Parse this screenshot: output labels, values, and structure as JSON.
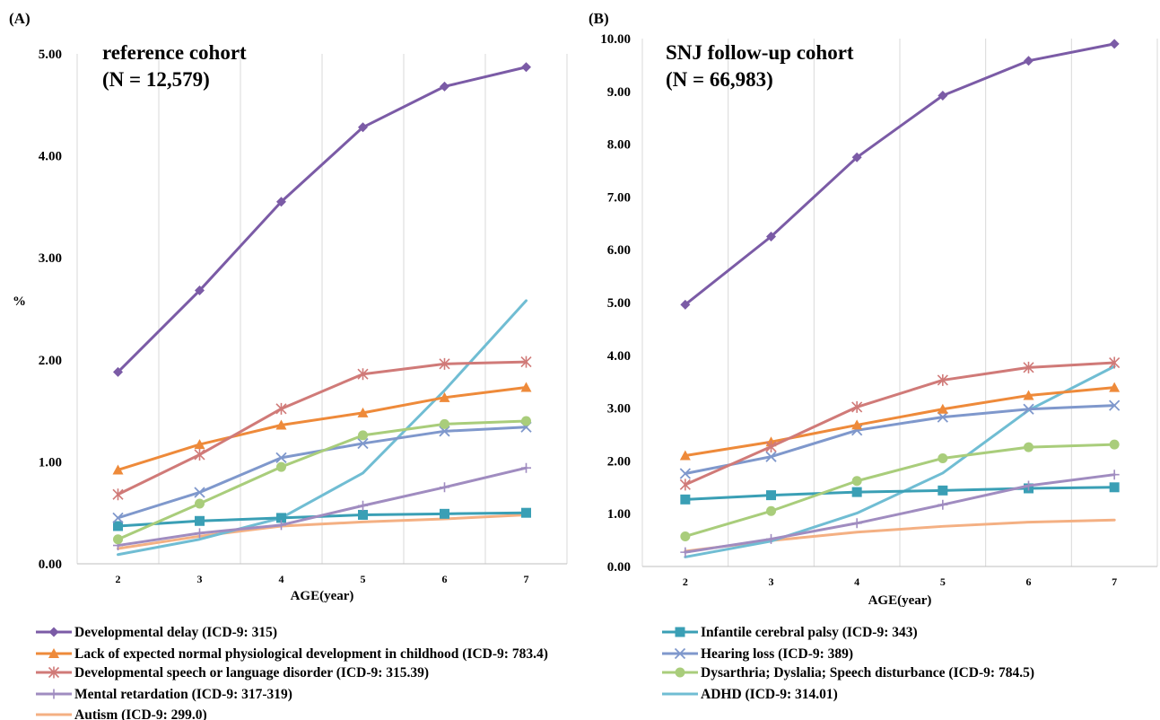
{
  "colors": {
    "Developmental delay (ICD-9: 315)": "#7b5ba6",
    "Infantile cerebral palsy (ICD-9: 343)": "#3a9fb5",
    "Lack of expected normal physiological development in childhood (ICD-9: 783.4)": "#ee8a3a",
    "Hearing loss (ICD-9: 389)": "#7f98cc",
    "Developmental speech or language disorder (ICD-9: 315.39)": "#d07a78",
    "Dysarthria; Dyslalia; Speech disturbance (ICD-9: 784.5)": "#a9cd7b",
    "Mental retardation (ICD-9: 317-319)": "#a08cc0",
    "ADHD (ICD-9: 314.01)": "#70bdd3",
    "Autism (ICD-9: 299.0)": "#f4b083"
  },
  "markers": {
    "Developmental delay (ICD-9: 315)": "diamond",
    "Infantile cerebral palsy (ICD-9: 343)": "square",
    "Lack of expected normal physiological development in childhood (ICD-9: 783.4)": "triangle",
    "Hearing loss (ICD-9: 389)": "x",
    "Developmental speech or language disorder (ICD-9: 315.39)": "star",
    "Dysarthria; Dyslalia; Speech disturbance (ICD-9: 784.5)": "circle",
    "Mental retardation (ICD-9: 317-319)": "plus",
    "ADHD (ICD-9: 314.01)": "none",
    "Autism (ICD-9: 299.0)": "none"
  },
  "legend": [
    "Developmental delay (ICD-9: 315)",
    "Infantile cerebral palsy (ICD-9: 343)",
    "Lack of expected normal physiological development in childhood (ICD-9: 783.4)",
    "Hearing loss (ICD-9: 389)",
    "Developmental speech or language disorder (ICD-9: 315.39)",
    "Dysarthria; Dyslalia; Speech disturbance (ICD-9: 784.5)",
    "Mental retardation (ICD-9: 317-319)",
    "ADHD (ICD-9: 314.01)",
    "Autism (ICD-9: 299.0)"
  ],
  "chart_data": [
    {
      "panel": "(A)",
      "type": "line",
      "title": [
        "reference cohort",
        "(N = 12,579)"
      ],
      "xlabel": "AGE(year)",
      "ylabel": "%",
      "x": [
        2,
        3,
        4,
        5,
        6,
        7
      ],
      "ylim": [
        0,
        5
      ],
      "yticks": [
        "0.00",
        "1.00",
        "2.00",
        "3.00",
        "4.00",
        "5.00"
      ],
      "grid": "vertical",
      "series": [
        {
          "name": "Developmental delay (ICD-9: 315)",
          "values": [
            1.88,
            2.68,
            3.55,
            4.28,
            4.68,
            4.87
          ]
        },
        {
          "name": "Developmental speech or language disorder (ICD-9: 315.39)",
          "values": [
            0.68,
            1.07,
            1.52,
            1.86,
            1.96,
            1.98
          ]
        },
        {
          "name": "Lack of expected normal physiological development in childhood (ICD-9: 783.4)",
          "values": [
            0.92,
            1.17,
            1.36,
            1.48,
            1.63,
            1.73
          ]
        },
        {
          "name": "Dysarthria; Dyslalia; Speech disturbance (ICD-9: 784.5)",
          "values": [
            0.24,
            0.59,
            0.95,
            1.26,
            1.37,
            1.4
          ]
        },
        {
          "name": "Hearing loss (ICD-9: 389)",
          "values": [
            0.45,
            0.7,
            1.04,
            1.18,
            1.3,
            1.34
          ]
        },
        {
          "name": "Mental retardation (ICD-9: 317-319)",
          "values": [
            0.18,
            0.3,
            0.38,
            0.57,
            0.75,
            0.94
          ]
        },
        {
          "name": "Infantile cerebral palsy (ICD-9: 343)",
          "values": [
            0.37,
            0.42,
            0.45,
            0.48,
            0.49,
            0.5
          ]
        },
        {
          "name": "ADHD (ICD-9: 314.01)",
          "values": [
            0.09,
            0.24,
            0.45,
            0.89,
            1.7,
            2.58
          ]
        },
        {
          "name": "Autism (ICD-9: 299.0)",
          "values": [
            0.15,
            0.27,
            0.37,
            0.41,
            0.44,
            0.48
          ]
        }
      ]
    },
    {
      "panel": "(B)",
      "type": "line",
      "title": [
        "SNJ follow-up cohort",
        "(N = 66,983)"
      ],
      "xlabel": "AGE(year)",
      "ylabel": "",
      "x": [
        2,
        3,
        4,
        5,
        6,
        7
      ],
      "ylim": [
        0,
        10
      ],
      "yticks": [
        "0.00",
        "1.00",
        "2.00",
        "3.00",
        "4.00",
        "5.00",
        "6.00",
        "7.00",
        "8.00",
        "9.00",
        "10.00"
      ],
      "grid": "vertical",
      "series": [
        {
          "name": "Developmental delay (ICD-9: 315)",
          "values": [
            4.96,
            6.25,
            7.75,
            8.92,
            9.58,
            9.9
          ]
        },
        {
          "name": "Developmental speech or language disorder (ICD-9: 315.39)",
          "values": [
            1.55,
            2.27,
            3.02,
            3.53,
            3.77,
            3.86
          ]
        },
        {
          "name": "Lack of expected normal physiological development in childhood (ICD-9: 783.4)",
          "values": [
            2.1,
            2.36,
            2.68,
            2.98,
            3.24,
            3.39
          ]
        },
        {
          "name": "Hearing loss (ICD-9: 389)",
          "values": [
            1.76,
            2.08,
            2.58,
            2.83,
            2.98,
            3.05
          ]
        },
        {
          "name": "Dysarthria; Dyslalia; Speech disturbance (ICD-9: 784.5)",
          "values": [
            0.57,
            1.05,
            1.62,
            2.05,
            2.26,
            2.31
          ]
        },
        {
          "name": "Mental retardation (ICD-9: 317-319)",
          "values": [
            0.27,
            0.52,
            0.82,
            1.17,
            1.53,
            1.74
          ]
        },
        {
          "name": "Infantile cerebral palsy (ICD-9: 343)",
          "values": [
            1.27,
            1.35,
            1.41,
            1.44,
            1.48,
            1.5
          ]
        },
        {
          "name": "ADHD (ICD-9: 314.01)",
          "values": [
            0.18,
            0.48,
            1.01,
            1.77,
            2.96,
            3.79
          ]
        },
        {
          "name": "Autism (ICD-9: 299.0)",
          "values": [
            0.29,
            0.49,
            0.65,
            0.76,
            0.84,
            0.88
          ]
        }
      ]
    }
  ]
}
